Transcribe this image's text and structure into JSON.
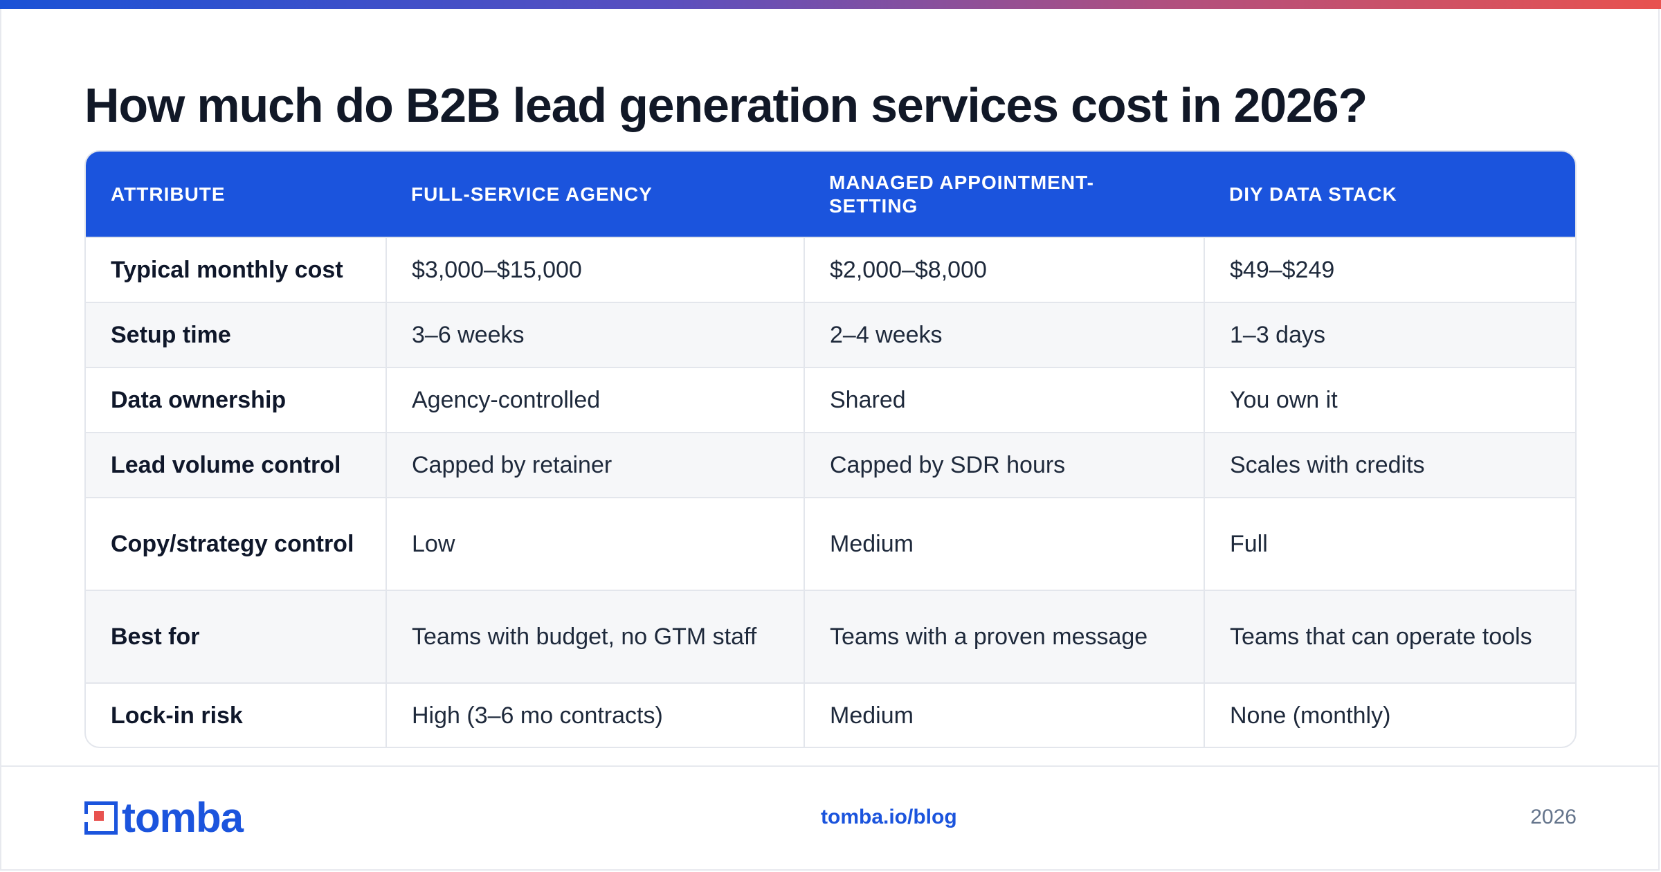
{
  "title": "How much do B2B lead generation services cost in 2026?",
  "table": {
    "headers": [
      "ATTRIBUTE",
      "FULL-SERVICE AGENCY",
      "MANAGED APPOINTMENT-SETTING",
      "DIY DATA STACK"
    ],
    "rows": [
      [
        "Typical monthly cost",
        "$3,000–$15,000",
        "$2,000–$8,000",
        "$49–$249"
      ],
      [
        "Setup time",
        "3–6 weeks",
        "2–4 weeks",
        "1–3 days"
      ],
      [
        "Data ownership",
        "Agency-controlled",
        "Shared",
        "You own it"
      ],
      [
        "Lead volume control",
        "Capped by retainer",
        "Capped by SDR hours",
        "Scales with credits"
      ],
      [
        "Copy/strategy control",
        "Low",
        "Medium",
        "Full"
      ],
      [
        "Best for",
        "Teams with budget, no GTM staff",
        "Teams with a proven message",
        "Teams that can operate tools"
      ],
      [
        "Lock-in risk",
        "High (3–6 mo contracts)",
        "Medium",
        "None (monthly)"
      ]
    ]
  },
  "footer": {
    "logo_text": "tomba",
    "url": "tomba.io/blog",
    "year": "2026"
  },
  "colors": {
    "brand_blue": "#1b54dd",
    "accent_red": "#e8524f"
  },
  "icons": {
    "logo": "tomba-logo-icon"
  }
}
